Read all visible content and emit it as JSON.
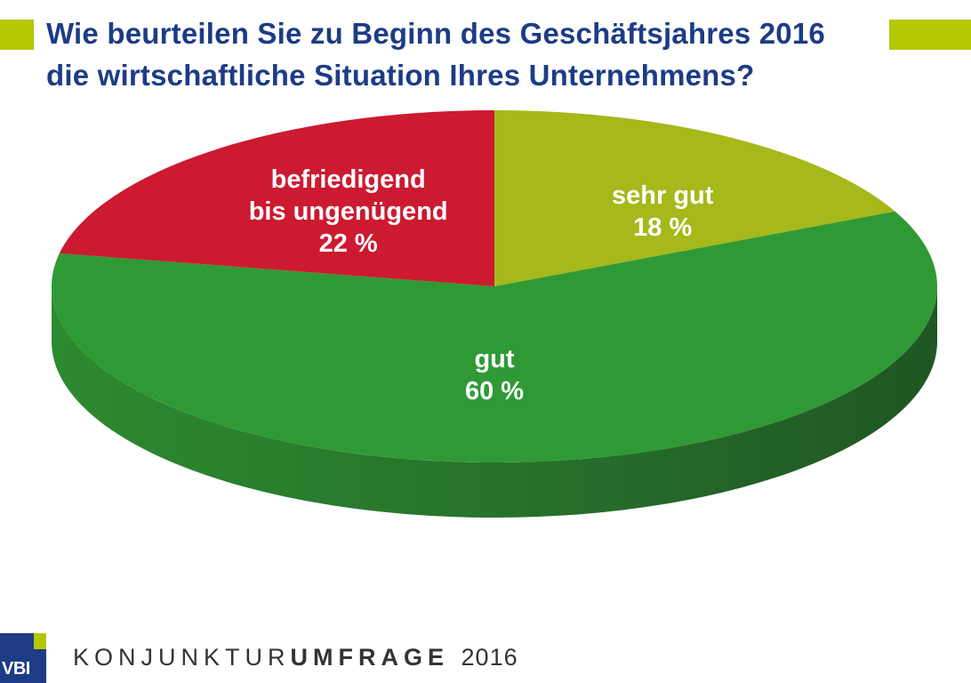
{
  "header": {
    "title_line1": "Wie beurteilen Sie zu Beginn des Geschäftsjahres 2016",
    "title_line2": "die wirtschaftliche Situation Ihres Unternehmens?"
  },
  "chart_data": {
    "type": "pie",
    "title": "Wie beurteilen Sie zu Beginn des Geschäftsjahres 2016 die wirtschaftliche Situation Ihres Unternehmens?",
    "unit": "%",
    "slices": [
      {
        "label": "sehr gut",
        "value": 18,
        "display": "18 %",
        "color": "#a6b81a"
      },
      {
        "label": "gut",
        "value": 60,
        "display": "60 %",
        "color": "#2f9a35"
      },
      {
        "label": "befriedigend bis ungenügend",
        "label_lines": [
          "befriedigend",
          "bis ungenügend"
        ],
        "value": 22,
        "display": "22 %",
        "color": "#cc1a30"
      }
    ]
  },
  "footer": {
    "logo_text": "VBI",
    "brand_thin": "KONJUNKTUR",
    "brand_bold": "UMFRAGE",
    "year": "2016"
  },
  "colors": {
    "title": "#1d3c85",
    "accent": "#b5c700"
  }
}
